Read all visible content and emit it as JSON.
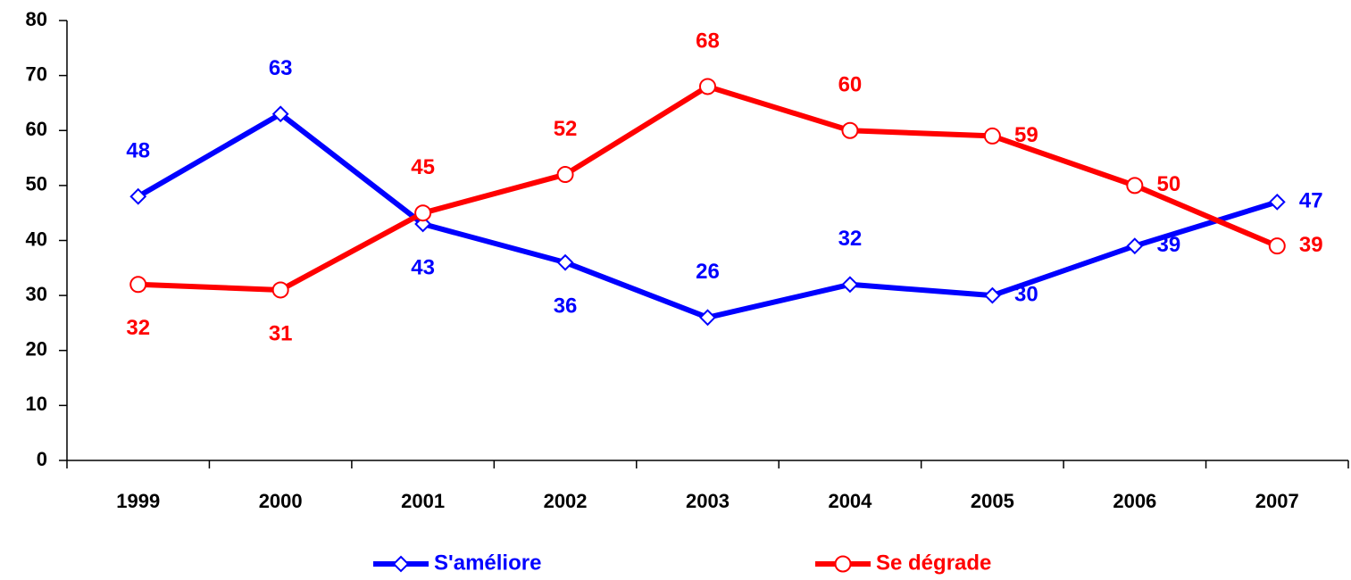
{
  "chart_data": {
    "type": "line",
    "categories": [
      "1999",
      "2000",
      "2001",
      "2002",
      "2003",
      "2004",
      "2005",
      "2006",
      "2007"
    ],
    "series": [
      {
        "name": "S'améliore",
        "color": "#0000ff",
        "marker": "diamond",
        "values": [
          48,
          63,
          43,
          36,
          26,
          32,
          30,
          39,
          47
        ]
      },
      {
        "name": "Se dégrade",
        "color": "#ff0000",
        "marker": "circle",
        "values": [
          32,
          31,
          45,
          52,
          68,
          60,
          59,
          50,
          39
        ]
      }
    ],
    "ylim": [
      0,
      80
    ],
    "yticks": [
      0,
      10,
      20,
      30,
      40,
      50,
      60,
      70,
      80
    ],
    "grid": false,
    "legend": "bottom"
  }
}
